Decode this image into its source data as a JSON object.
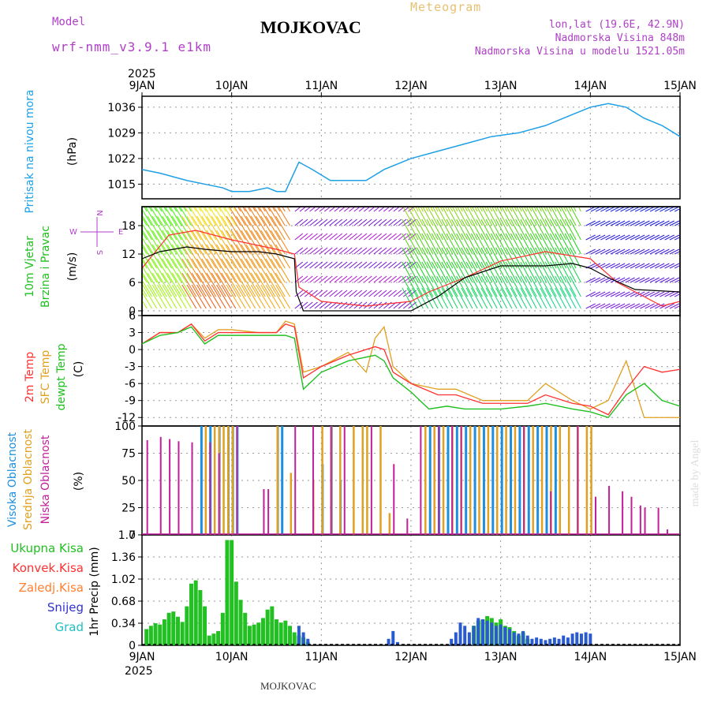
{
  "header": {
    "model_label": "Model",
    "model_name": "wrf-nmm_v3.9.1 e1km",
    "title": "MOJKOVAC",
    "meteogram": "Meteogram",
    "lonlat": "lon,lat (19.6E, 42.9N)",
    "elev": "Nadmorska Visina 848m",
    "elev_model": "Nadmorska Visina u modelu 1521.05m",
    "year": "2025",
    "footer": "MOJKOVAC",
    "credit": "made by Angel"
  },
  "colors": {
    "pressure": "#1ea0e6",
    "wind_speed": "#000000",
    "gust": "#ff3030",
    "temp2m": "#ff3030",
    "sfc_temp": "#e0a020",
    "dewpt": "#20c020",
    "cloud_high": "#1e8fe0",
    "cloud_mid": "#e0a020",
    "cloud_low": "#c0209a",
    "precip_total": "#22c022",
    "precip_snow": "#2a5ad0"
  },
  "chart_data": [
    {
      "type": "line",
      "name": "pressure",
      "ylabel_lines": [
        "Pritisak na nivou mora",
        "(hPa)"
      ],
      "ylim": [
        1011,
        1039
      ],
      "yticks": [
        "1015",
        "1022",
        "1029",
        "1036"
      ],
      "xticks": [
        "9JAN",
        "10JAN",
        "11JAN",
        "12JAN",
        "13JAN",
        "14JAN",
        "15JAN"
      ],
      "xlim_days": [
        0,
        6
      ],
      "grid": true,
      "series": [
        {
          "x": [
            0,
            0.2,
            0.5,
            0.7,
            0.9,
            1.0,
            1.2,
            1.4,
            1.5,
            1.6,
            1.75,
            1.9,
            2.1,
            2.3,
            2.5,
            2.7,
            3.0,
            3.3,
            3.6,
            3.9,
            4.2,
            4.5,
            4.8,
            5.0,
            5.2,
            5.4,
            5.6,
            5.8,
            6.0
          ],
          "y": [
            1019,
            1018,
            1016,
            1015,
            1014,
            1013,
            1013,
            1014,
            1013,
            1013,
            1021,
            1019,
            1016,
            1016,
            1016,
            1019,
            1022,
            1024,
            1026,
            1028,
            1029,
            1031,
            1034,
            1036,
            1037,
            1036,
            1033,
            1031,
            1028
          ]
        }
      ]
    },
    {
      "type": "line",
      "name": "wind",
      "ylabel_lines": [
        "10m Vjetar",
        "Brzina i Pravac",
        "(m/s)"
      ],
      "direction_legend": [
        "N",
        "W",
        "E",
        "S"
      ],
      "ylim": [
        -1,
        22
      ],
      "yticks": [
        "0",
        "6",
        "12",
        "18"
      ],
      "grid": true,
      "series": [
        {
          "name": "speed",
          "x": [
            0,
            0.2,
            0.5,
            0.7,
            1.0,
            1.3,
            1.5,
            1.7,
            1.72,
            1.8,
            2.0,
            2.5,
            3.0,
            3.3,
            3.6,
            4.0,
            4.5,
            4.8,
            5.0,
            5.2,
            5.5,
            6.0
          ],
          "y": [
            11,
            12.5,
            13.5,
            13,
            12.5,
            12.5,
            12,
            11,
            4,
            0,
            0,
            0,
            0,
            3,
            7,
            9.5,
            9.5,
            10,
            9,
            7,
            4.5,
            4
          ]
        },
        {
          "name": "gust",
          "x": [
            0,
            0.3,
            0.6,
            1.0,
            1.5,
            1.7,
            1.75,
            2.0,
            2.5,
            3.0,
            3.2,
            3.6,
            4.0,
            4.5,
            5.0,
            5.3,
            5.6,
            5.8,
            6.0
          ],
          "y": [
            9,
            16,
            17,
            15,
            13,
            12,
            5,
            2,
            1,
            2,
            4,
            7,
            10.5,
            12.5,
            11,
            6,
            3,
            1,
            2
          ]
        }
      ],
      "barb_bands": [
        0.5,
        3,
        6,
        9,
        12,
        15,
        18,
        21
      ]
    },
    {
      "type": "line",
      "name": "temperature",
      "ylabel_lines": [
        "2m Temp",
        "SFC Temp",
        "dewpt Temp",
        "(C)"
      ],
      "ylim": [
        -13.5,
        6
      ],
      "yticks": [
        "-12",
        "-9",
        "-6",
        "-3",
        "0",
        "3",
        "6"
      ],
      "grid": true,
      "series": [
        {
          "name": "2m Temp",
          "x": [
            0,
            0.2,
            0.4,
            0.55,
            0.7,
            0.85,
            1.0,
            1.3,
            1.5,
            1.6,
            1.7,
            1.8,
            2.0,
            2.3,
            2.6,
            2.7,
            2.8,
            3.0,
            3.3,
            3.5,
            3.8,
            4.0,
            4.3,
            4.5,
            4.8,
            5.0,
            5.2,
            5.4,
            5.6,
            5.8,
            6.0
          ],
          "y": [
            1,
            3,
            3,
            4.5,
            1.5,
            3,
            3,
            3,
            3,
            4.5,
            4,
            -5,
            -3,
            -1,
            0.5,
            0,
            -4,
            -6,
            -8,
            -8,
            -9.5,
            -9.5,
            -9.5,
            -8,
            -9.5,
            -10,
            -11.5,
            -7,
            -3,
            -4,
            -3.5
          ]
        },
        {
          "name": "SFC Temp",
          "x": [
            0,
            0.2,
            0.4,
            0.55,
            0.7,
            0.85,
            1.0,
            1.3,
            1.5,
            1.6,
            1.7,
            1.8,
            2.0,
            2.3,
            2.5,
            2.6,
            2.7,
            2.8,
            3.0,
            3.3,
            3.5,
            3.8,
            4.0,
            4.3,
            4.5,
            4.8,
            5.0,
            5.2,
            5.4,
            5.6,
            5.8,
            6.0
          ],
          "y": [
            1,
            3,
            3,
            4.5,
            2,
            3.5,
            3.5,
            3,
            3,
            5,
            4.5,
            -4,
            -3,
            -0.5,
            -4,
            2,
            4,
            -3,
            -6,
            -7,
            -7,
            -9,
            -9,
            -9,
            -6,
            -9,
            -10.5,
            -9,
            -2,
            -12,
            -12,
            -12
          ]
        },
        {
          "name": "dewpt Temp",
          "x": [
            0,
            0.2,
            0.4,
            0.55,
            0.7,
            0.85,
            1.0,
            1.3,
            1.5,
            1.6,
            1.7,
            1.8,
            2.0,
            2.3,
            2.6,
            2.7,
            2.8,
            3.0,
            3.2,
            3.4,
            3.6,
            3.8,
            4.0,
            4.3,
            4.5,
            4.8,
            5.0,
            5.2,
            5.4,
            5.6,
            5.8,
            6.0
          ],
          "y": [
            1,
            2.5,
            3,
            4,
            1,
            2.5,
            2.5,
            2.5,
            2.5,
            2.5,
            2,
            -7,
            -4,
            -2,
            -1,
            -2,
            -5,
            -7.5,
            -10.5,
            -10,
            -10.5,
            -10.5,
            -10.5,
            -10,
            -9.5,
            -10.5,
            -11,
            -12,
            -8,
            -6,
            -9,
            -10
          ]
        }
      ]
    },
    {
      "type": "bar",
      "name": "cloud",
      "ylabel_lines": [
        "Visoka Oblacnost",
        "Srednja Oblacnost",
        "Niska Oblacnost",
        "(%)"
      ],
      "ylim": [
        0,
        100
      ],
      "yticks": [
        "0",
        "25",
        "50",
        "75",
        "100"
      ],
      "grid": true,
      "series": [
        {
          "name": "low",
          "x": [
            0.05,
            0.2,
            0.3,
            0.4,
            0.55,
            0.75,
            0.85,
            1.05,
            1.35,
            1.4,
            1.7,
            1.9,
            2.1,
            2.25,
            2.55,
            2.8,
            2.95,
            3.1,
            3.3,
            3.45,
            3.55,
            4.25,
            4.55,
            4.85,
            5.05,
            5.2,
            5.35,
            5.45,
            5.55,
            5.6,
            5.75,
            5.85
          ],
          "y": [
            87,
            90,
            88,
            86,
            85,
            85,
            75,
            100,
            42,
            42,
            100,
            100,
            100,
            100,
            100,
            65,
            15,
            100,
            100,
            100,
            100,
            100,
            40,
            100,
            35,
            45,
            40,
            35,
            27,
            25,
            25,
            5
          ]
        },
        {
          "name": "mid",
          "x": [
            0.7,
            0.8,
            0.85,
            0.9,
            0.95,
            1.0,
            1.5,
            1.65,
            1.9,
            2.0,
            2.1,
            2.2,
            2.35,
            2.45,
            2.5,
            2.65,
            2.75,
            3.15,
            3.25,
            3.35,
            3.45,
            3.55,
            3.65,
            3.75,
            3.85,
            3.95,
            4.05,
            4.15,
            4.25,
            4.35,
            4.45,
            4.55,
            4.65,
            4.75,
            4.85,
            4.95,
            5.0
          ],
          "y": [
            100,
            100,
            100,
            100,
            100,
            100,
            100,
            57,
            50,
            100,
            100,
            100,
            100,
            100,
            100,
            100,
            20,
            100,
            100,
            100,
            100,
            100,
            100,
            100,
            100,
            100,
            100,
            100,
            100,
            100,
            100,
            100,
            100,
            100,
            100,
            100,
            100
          ]
        },
        {
          "name": "high",
          "x": [
            0.65,
            0.75,
            0.85,
            0.95,
            1.0,
            1.05,
            1.5,
            1.55,
            2.0,
            2.1,
            2.2,
            3.2,
            3.3,
            3.4,
            3.5,
            3.6,
            3.7,
            3.8,
            3.9,
            4.0,
            4.1,
            4.2,
            4.3,
            4.4,
            4.5,
            4.6
          ],
          "y": [
            100,
            100,
            100,
            100,
            100,
            100,
            100,
            100,
            65,
            100,
            50,
            100,
            100,
            100,
            100,
            100,
            100,
            100,
            100,
            100,
            100,
            100,
            100,
            100,
            100,
            100
          ]
        }
      ]
    },
    {
      "type": "bar",
      "name": "precip",
      "ylabel_lines": [
        "1hr Precip (mm)"
      ],
      "legend": [
        "Ukupna Kisa",
        "Konvek.Kisa",
        "Zaledj.Kisa",
        "Snijeg",
        "Grad"
      ],
      "ylim": [
        0,
        1.7
      ],
      "yticks": [
        "0",
        "0.34",
        "0.68",
        "1.02",
        "1.36",
        "1.7"
      ],
      "grid": true,
      "series": [
        {
          "name": "total",
          "x": [
            0.05,
            0.1,
            0.15,
            0.2,
            0.25,
            0.3,
            0.35,
            0.4,
            0.45,
            0.5,
            0.55,
            0.6,
            0.65,
            0.7,
            0.75,
            0.8,
            0.85,
            0.9,
            0.95,
            1.0,
            1.05,
            1.1,
            1.15,
            1.2,
            1.25,
            1.3,
            1.35,
            1.4,
            1.45,
            1.5,
            1.55,
            1.6,
            1.65,
            1.7,
            1.75,
            1.8,
            1.85,
            3.7,
            3.75,
            3.8,
            3.85,
            3.9,
            3.95,
            4.0,
            4.05,
            4.1,
            4.15,
            4.2,
            4.25,
            4.3
          ],
          "y": [
            0.25,
            0.3,
            0.34,
            0.32,
            0.4,
            0.5,
            0.52,
            0.44,
            0.36,
            0.6,
            0.95,
            1.0,
            0.85,
            0.6,
            0.15,
            0.18,
            0.22,
            0.5,
            1.62,
            1.62,
            0.98,
            0.7,
            0.5,
            0.3,
            0.32,
            0.35,
            0.42,
            0.55,
            0.6,
            0.4,
            0.35,
            0.38,
            0.3,
            0.2,
            0.15,
            0.12,
            0.05,
            0.3,
            0.38,
            0.4,
            0.45,
            0.42,
            0.35,
            0.4,
            0.3,
            0.28,
            0.22,
            0.15,
            0.2,
            0.1
          ]
        },
        {
          "name": "snow",
          "x": [
            1.75,
            1.8,
            1.85,
            2.75,
            2.8,
            2.85,
            3.45,
            3.5,
            3.55,
            3.6,
            3.65,
            3.7,
            3.75,
            3.8,
            3.85,
            3.9,
            3.95,
            4.0,
            4.05,
            4.1,
            4.15,
            4.2,
            4.25,
            4.3,
            4.35,
            4.4,
            4.45,
            4.5,
            4.55,
            4.6,
            4.65,
            4.7,
            4.75,
            4.8,
            4.85,
            4.9,
            4.95,
            5.0
          ],
          "y": [
            0.3,
            0.2,
            0.1,
            0.1,
            0.22,
            0.05,
            0.1,
            0.2,
            0.35,
            0.3,
            0.2,
            0.3,
            0.42,
            0.4,
            0.38,
            0.35,
            0.3,
            0.32,
            0.28,
            0.25,
            0.2,
            0.18,
            0.22,
            0.15,
            0.1,
            0.12,
            0.1,
            0.08,
            0.1,
            0.12,
            0.1,
            0.15,
            0.12,
            0.18,
            0.2,
            0.18,
            0.2,
            0.18
          ]
        }
      ]
    }
  ]
}
